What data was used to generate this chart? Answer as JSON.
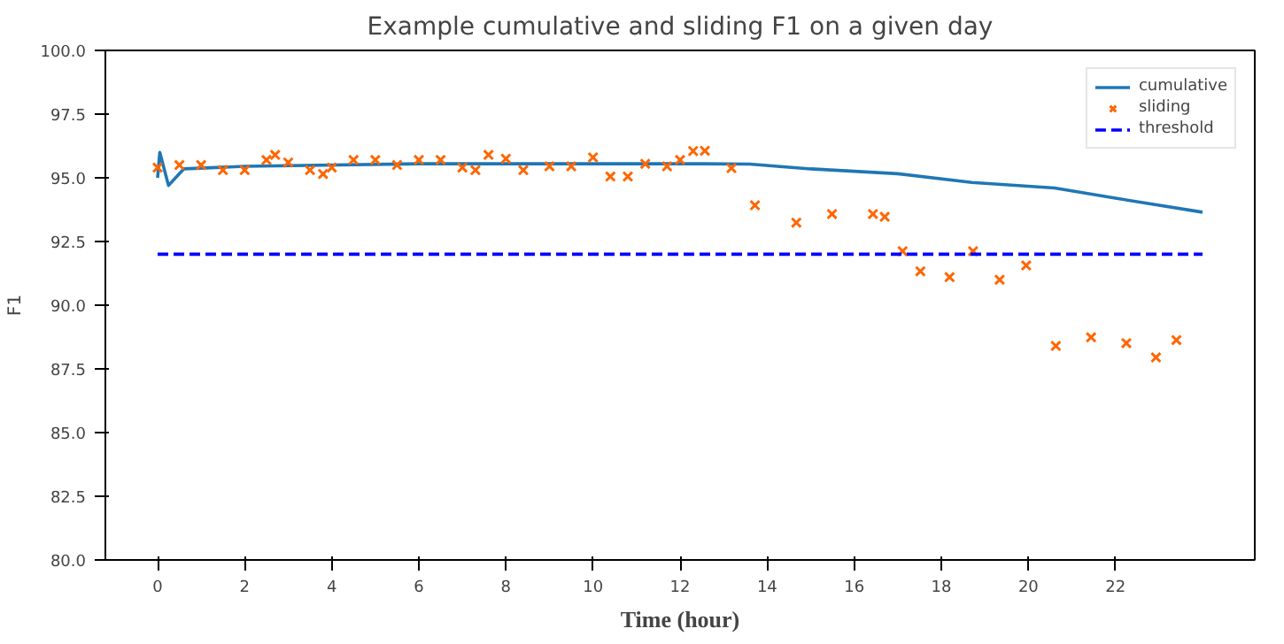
{
  "chart_data": {
    "type": "line",
    "title": "Example cumulative and sliding F1 on a given day",
    "xlabel": "Time (hour)",
    "ylabel": "F1",
    "xlim": [
      -1.2,
      25.2
    ],
    "xticks": [
      0,
      2,
      4,
      6,
      8,
      10,
      12,
      14,
      16,
      18,
      20,
      22
    ],
    "ylim": [
      80,
      100
    ],
    "yticks": [
      {
        "value": 80,
        "label": "80.0"
      },
      {
        "value": 82.5,
        "label": "82.5"
      },
      {
        "value": 85,
        "label": "85.0"
      },
      {
        "value": 87.5,
        "label": "87.5"
      },
      {
        "value": 90,
        "label": "90.0"
      },
      {
        "value": 92.5,
        "label": "92.5"
      },
      {
        "value": 95,
        "label": "95.0"
      },
      {
        "value": 97.5,
        "label": "97.5"
      },
      {
        "value": 100,
        "label": "100.0"
      }
    ],
    "grid": false,
    "legend": "top right",
    "series": [
      {
        "name": "cumulative",
        "color": "#1f77b4",
        "line_style": "solid",
        "x": [
          0,
          0.05,
          0.25,
          0.6,
          2,
          6,
          10,
          12.5,
          13.6,
          15,
          17,
          18.7,
          20.6,
          22,
          24
        ],
        "values": [
          95.0,
          96.0,
          94.7,
          95.35,
          95.45,
          95.55,
          95.55,
          95.55,
          95.54,
          95.35,
          95.16,
          94.82,
          94.6,
          94.2,
          93.65
        ]
      },
      {
        "name": "sliding",
        "type": "scatter",
        "marker": "cross",
        "color": "#ff6600",
        "x": [
          0,
          0.5,
          1,
          1.5,
          2,
          2.5,
          2.7,
          3,
          3.5,
          3.8,
          4,
          4.5,
          5,
          5.5,
          6,
          6.5,
          7,
          7.3,
          7.6,
          8,
          8.4,
          9,
          9.5,
          10,
          10.4,
          10.8,
          11.2,
          11.7,
          12,
          12.3,
          12.57,
          13.18,
          13.72,
          14.67,
          15.49,
          16.43,
          16.7,
          17.11,
          17.52,
          18.19,
          18.73,
          19.34,
          19.95,
          20.63,
          21.44,
          22.25,
          22.93,
          23.4
        ],
        "values": [
          95.4,
          95.5,
          95.5,
          95.3,
          95.3,
          95.7,
          95.9,
          95.6,
          95.3,
          95.15,
          95.4,
          95.7,
          95.7,
          95.5,
          95.7,
          95.7,
          95.4,
          95.3,
          95.9,
          95.75,
          95.3,
          95.45,
          95.45,
          95.8,
          95.05,
          95.05,
          95.55,
          95.45,
          95.7,
          96.05,
          96.06,
          95.38,
          93.92,
          93.24,
          93.58,
          93.58,
          93.47,
          92.12,
          91.33,
          91.1,
          92.12,
          91.0,
          91.56,
          88.4,
          88.74,
          88.51,
          87.95,
          88.63
        ]
      },
      {
        "name": "threshold",
        "color": "#0000ff",
        "line_style": "dashed",
        "x": [
          0,
          24
        ],
        "values": [
          92,
          92
        ]
      }
    ]
  }
}
